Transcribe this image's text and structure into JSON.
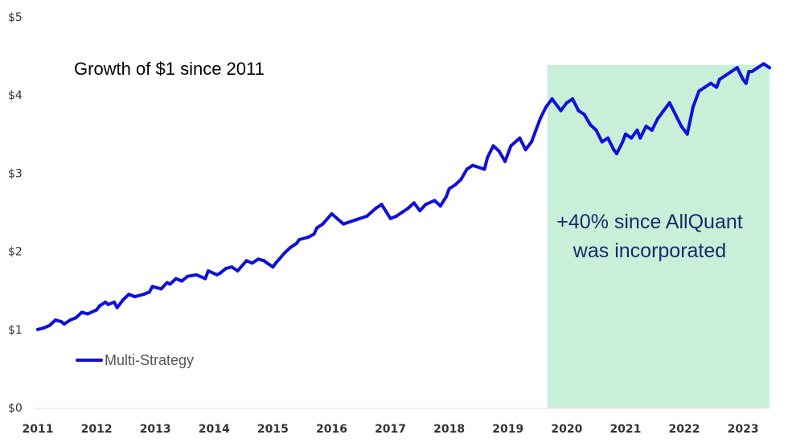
{
  "chart_data": {
    "type": "line",
    "title": "Growth of $1 since 2011",
    "annotation": [
      "+40% since AllQuant",
      "was incorporated"
    ],
    "legend": {
      "label": "Multi-Strategy",
      "placement": "bottom-left"
    },
    "colors": {
      "line": "#1010d8",
      "highlight": "#c8efd8"
    },
    "ylim": [
      0,
      5
    ],
    "yticks": [
      {
        "value": 0,
        "label": "$0"
      },
      {
        "value": 1,
        "label": "$1"
      },
      {
        "value": 2,
        "label": "$2"
      },
      {
        "value": 3,
        "label": "$3"
      },
      {
        "value": 4,
        "label": "$4"
      },
      {
        "value": 5,
        "label": "$5"
      }
    ],
    "xlim": [
      2011.0,
      2023.45
    ],
    "xticks": [
      "2011",
      "2012",
      "2013",
      "2014",
      "2015",
      "2016",
      "2017",
      "2018",
      "2019",
      "2020",
      "2021",
      "2022",
      "2023"
    ],
    "highlight_range": [
      2019.67,
      2023.45
    ],
    "series": [
      {
        "name": "Multi-Strategy",
        "x": [
          2011.0,
          2011.1,
          2011.2,
          2011.3,
          2011.4,
          2011.45,
          2011.55,
          2011.65,
          2011.75,
          2011.85,
          2012.0,
          2012.05,
          2012.15,
          2012.2,
          2012.3,
          2012.35,
          2012.45,
          2012.55,
          2012.65,
          2012.8,
          2012.9,
          2012.95,
          2013.1,
          2013.2,
          2013.25,
          2013.35,
          2013.45,
          2013.55,
          2013.7,
          2013.85,
          2013.9,
          2014.05,
          2014.1,
          2014.2,
          2014.3,
          2014.4,
          2014.55,
          2014.65,
          2014.75,
          2014.85,
          2014.9,
          2015.0,
          2015.05,
          2015.2,
          2015.3,
          2015.4,
          2015.45,
          2015.6,
          2015.7,
          2015.75,
          2015.85,
          2016.0,
          2016.2,
          2016.4,
          2016.6,
          2016.75,
          2016.85,
          2017.0,
          2017.1,
          2017.2,
          2017.3,
          2017.4,
          2017.5,
          2017.6,
          2017.75,
          2017.85,
          2017.95,
          2018.0,
          2018.1,
          2018.2,
          2018.3,
          2018.4,
          2018.6,
          2018.65,
          2018.75,
          2018.85,
          2018.95,
          2019.05,
          2019.2,
          2019.3,
          2019.4,
          2019.55,
          2019.65,
          2019.75,
          2019.9,
          2020.0,
          2020.1,
          2020.2,
          2020.3,
          2020.4,
          2020.5,
          2020.6,
          2020.7,
          2020.8,
          2020.85,
          2020.95,
          2021.0,
          2021.1,
          2021.2,
          2021.25,
          2021.35,
          2021.45,
          2021.55,
          2021.65,
          2021.75,
          2021.85,
          2021.95,
          2022.05,
          2022.15,
          2022.25,
          2022.35,
          2022.45,
          2022.55,
          2022.6,
          2022.7,
          2022.8,
          2022.9,
          2023.0,
          2023.05,
          2023.1,
          2023.15,
          2023.25,
          2023.35,
          2023.45
        ],
        "values": [
          1.0,
          1.02,
          1.05,
          1.12,
          1.1,
          1.07,
          1.12,
          1.15,
          1.22,
          1.2,
          1.25,
          1.3,
          1.35,
          1.32,
          1.35,
          1.28,
          1.38,
          1.45,
          1.42,
          1.45,
          1.48,
          1.55,
          1.52,
          1.6,
          1.58,
          1.65,
          1.62,
          1.68,
          1.7,
          1.65,
          1.75,
          1.7,
          1.72,
          1.78,
          1.8,
          1.75,
          1.88,
          1.85,
          1.9,
          1.88,
          1.85,
          1.8,
          1.85,
          1.98,
          2.05,
          2.1,
          2.15,
          2.18,
          2.22,
          2.3,
          2.35,
          2.48,
          2.35,
          2.4,
          2.45,
          2.55,
          2.6,
          2.42,
          2.45,
          2.5,
          2.55,
          2.62,
          2.52,
          2.6,
          2.65,
          2.58,
          2.7,
          2.8,
          2.85,
          2.92,
          3.05,
          3.1,
          3.05,
          3.2,
          3.35,
          3.28,
          3.15,
          3.35,
          3.45,
          3.3,
          3.4,
          3.7,
          3.85,
          3.95,
          3.8,
          3.9,
          3.95,
          3.8,
          3.75,
          3.62,
          3.55,
          3.4,
          3.45,
          3.3,
          3.25,
          3.4,
          3.5,
          3.45,
          3.55,
          3.45,
          3.6,
          3.55,
          3.7,
          3.8,
          3.9,
          3.75,
          3.6,
          3.5,
          3.85,
          4.05,
          4.1,
          4.15,
          4.1,
          4.2,
          4.25,
          4.3,
          4.35,
          4.2,
          4.15,
          4.3,
          4.3,
          4.35,
          4.4,
          4.35
        ]
      }
    ]
  }
}
